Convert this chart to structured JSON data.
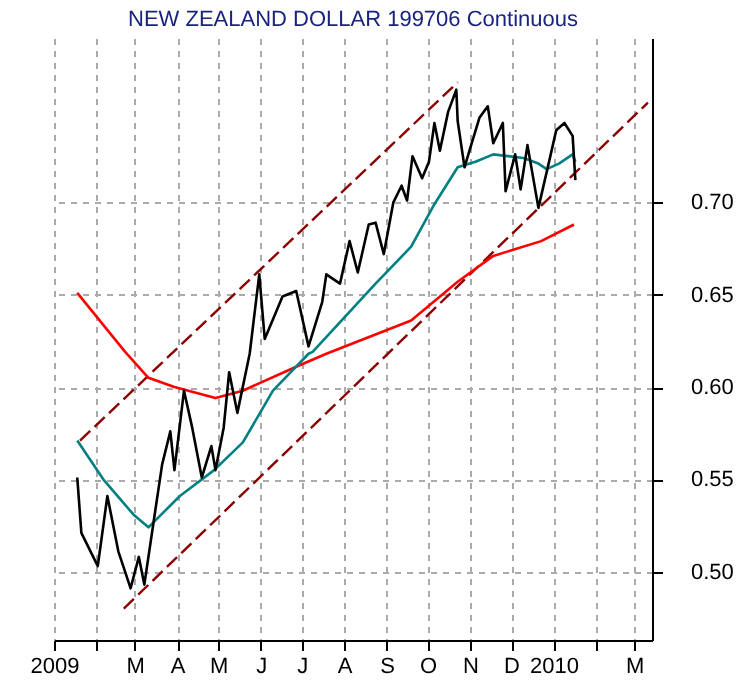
{
  "chart_data": {
    "type": "line",
    "title": "NEW ZEALAND DOLLAR 199706 Continuous",
    "xlim": [
      "2009-01-01",
      "2010-03-14"
    ],
    "ylim": [
      0.463,
      0.789
    ],
    "xticks": [
      {
        "value": "2009-01-01",
        "label": "2009"
      },
      {
        "value": "2009-02-01",
        "label": null
      },
      {
        "value": "2009-03-01",
        "label": "M"
      },
      {
        "value": "2009-04-01",
        "label": "A"
      },
      {
        "value": "2009-05-01",
        "label": "M"
      },
      {
        "value": "2009-06-01",
        "label": "J"
      },
      {
        "value": "2009-07-01",
        "label": "J"
      },
      {
        "value": "2009-08-01",
        "label": "A"
      },
      {
        "value": "2009-09-01",
        "label": "S"
      },
      {
        "value": "2009-10-01",
        "label": "O"
      },
      {
        "value": "2009-11-01",
        "label": "N"
      },
      {
        "value": "2009-12-01",
        "label": "D"
      },
      {
        "value": "2010-01-01",
        "label": "2010"
      },
      {
        "value": "2010-02-01",
        "label": null
      },
      {
        "value": "2010-03-01",
        "label": "M"
      }
    ],
    "yticks": [
      {
        "value": 0.5,
        "label": "0.50"
      },
      {
        "value": 0.55,
        "label": "0.55"
      },
      {
        "value": 0.6,
        "label": "0.60"
      },
      {
        "value": 0.65,
        "label": "0.65"
      },
      {
        "value": 0.7,
        "label": "0.70"
      }
    ],
    "grid": true,
    "series": [
      {
        "color": "#8b0000",
        "line_style": "dashed",
        "x": [
          "2009-01-20",
          "2009-10-23"
        ],
        "values": [
          0.571,
          0.765
        ]
      },
      {
        "color": "#8b0000",
        "line_style": "dashed",
        "x": [
          "2009-02-21",
          "2010-03-11"
        ],
        "values": [
          0.48,
          0.754
        ]
      },
      {
        "color": "#ff0000",
        "x": [
          "2009-01-18",
          "2009-02-22",
          "2009-03-11",
          "2009-03-30",
          "2009-04-29",
          "2009-05-19",
          "2009-06-27",
          "2009-07-19",
          "2009-09-19",
          "2009-10-23",
          "2009-11-18",
          "2009-12-23",
          "2010-01-16"
        ],
        "values": [
          0.651,
          0.619,
          0.605,
          0.6,
          0.594,
          0.598,
          0.611,
          0.618,
          0.636,
          0.657,
          0.671,
          0.679,
          0.688
        ]
      },
      {
        "color": "#008080",
        "x": [
          "2009-01-18",
          "2009-02-06",
          "2009-02-28",
          "2009-03-11",
          "2009-04-03",
          "2009-04-28",
          "2009-05-19",
          "2009-06-10",
          "2009-07-06",
          "2009-07-09",
          "2009-08-24",
          "2009-09-19",
          "2009-10-06",
          "2009-10-23",
          "2009-11-05",
          "2009-11-18",
          "2009-12-10",
          "2009-12-21",
          "2009-12-27",
          "2010-01-05",
          "2010-01-15",
          "2010-01-17"
        ],
        "values": [
          0.571,
          0.55,
          0.531,
          0.524,
          0.541,
          0.555,
          0.57,
          0.598,
          0.618,
          0.619,
          0.656,
          0.676,
          0.699,
          0.719,
          0.722,
          0.726,
          0.724,
          0.721,
          0.718,
          0.721,
          0.726,
          0.722
        ]
      },
      {
        "color": "#000000",
        "x": [
          "2009-01-18",
          "2009-01-21",
          "2009-02-02",
          "2009-02-09",
          "2009-02-17",
          "2009-02-26",
          "2009-03-04",
          "2009-03-08",
          "2009-03-15",
          "2009-03-21",
          "2009-03-27",
          "2009-03-30",
          "2009-04-06",
          "2009-04-12",
          "2009-04-19",
          "2009-04-26",
          "2009-04-29",
          "2009-05-05",
          "2009-05-09",
          "2009-05-15",
          "2009-05-24",
          "2009-05-31",
          "2009-06-04",
          "2009-06-17",
          "2009-06-27",
          "2009-07-06",
          "2009-07-16",
          "2009-07-19",
          "2009-07-29",
          "2009-08-05",
          "2009-08-11",
          "2009-08-19",
          "2009-08-24",
          "2009-08-30",
          "2009-09-06",
          "2009-09-12",
          "2009-09-16",
          "2009-09-20",
          "2009-09-27",
          "2009-10-02",
          "2009-10-06",
          "2009-10-10",
          "2009-10-16",
          "2009-10-22",
          "2009-10-23",
          "2009-10-28",
          "2009-11-01",
          "2009-11-08",
          "2009-11-14",
          "2009-11-18",
          "2009-11-25",
          "2009-11-27",
          "2009-12-04",
          "2009-12-08",
          "2009-12-13",
          "2009-12-21",
          "2009-12-30",
          "2010-01-03",
          "2010-01-09",
          "2010-01-15",
          "2010-01-17"
        ],
        "values": [
          0.551,
          0.521,
          0.503,
          0.541,
          0.511,
          0.491,
          0.508,
          0.493,
          0.528,
          0.558,
          0.576,
          0.555,
          0.598,
          0.578,
          0.551,
          0.568,
          0.555,
          0.578,
          0.608,
          0.586,
          0.618,
          0.661,
          0.626,
          0.649,
          0.652,
          0.622,
          0.646,
          0.661,
          0.656,
          0.679,
          0.662,
          0.688,
          0.689,
          0.672,
          0.7,
          0.709,
          0.701,
          0.725,
          0.713,
          0.722,
          0.743,
          0.728,
          0.749,
          0.761,
          0.744,
          0.719,
          0.729,
          0.746,
          0.752,
          0.732,
          0.743,
          0.706,
          0.726,
          0.707,
          0.731,
          0.697,
          0.726,
          0.739,
          0.743,
          0.736,
          0.712
        ]
      }
    ]
  }
}
